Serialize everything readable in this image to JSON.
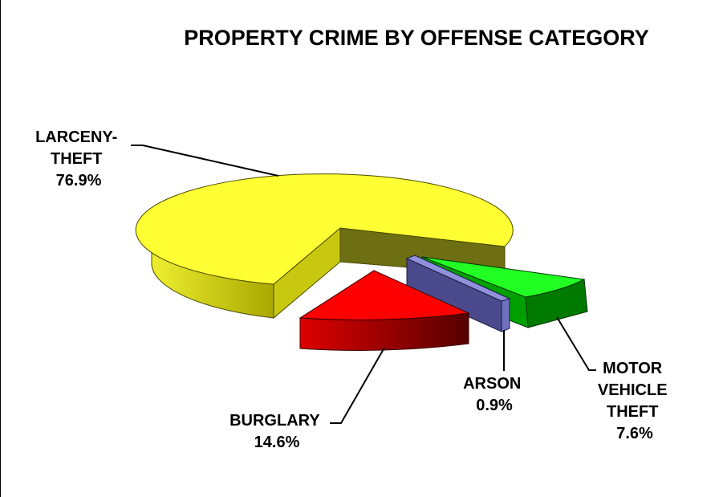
{
  "chart_data": {
    "type": "pie",
    "style": "3d-exploded",
    "title": "PROPERTY CRIME BY OFFENSE CATEGORY",
    "legend": "none",
    "slices": [
      {
        "key": "larceny",
        "label_lines": [
          "LARCENY-",
          "THEFT"
        ],
        "value_label": "76.9%",
        "value": 76.9,
        "top_color": "#ffff33",
        "side_color": "#cccc00",
        "dark_color": "#757510"
      },
      {
        "key": "burglary",
        "label_lines": [
          "BURGLARY"
        ],
        "value_label": "14.6%",
        "value": 14.6,
        "top_color": "#ff0000",
        "side_color": "#c80000",
        "dark_color": "#660000"
      },
      {
        "key": "arson",
        "label_lines": [
          "ARSON"
        ],
        "value_label": "0.9%",
        "value": 0.9,
        "top_color": "#8f8fd8",
        "side_color": "#505090",
        "dark_color": "#303060"
      },
      {
        "key": "motor_vehicle_theft",
        "label_lines": [
          "MOTOR",
          "VEHICLE",
          "THEFT"
        ],
        "value_label": "7.6%",
        "value": 7.6,
        "top_color": "#22ff22",
        "side_color": "#008800",
        "dark_color": "#005500"
      }
    ]
  }
}
